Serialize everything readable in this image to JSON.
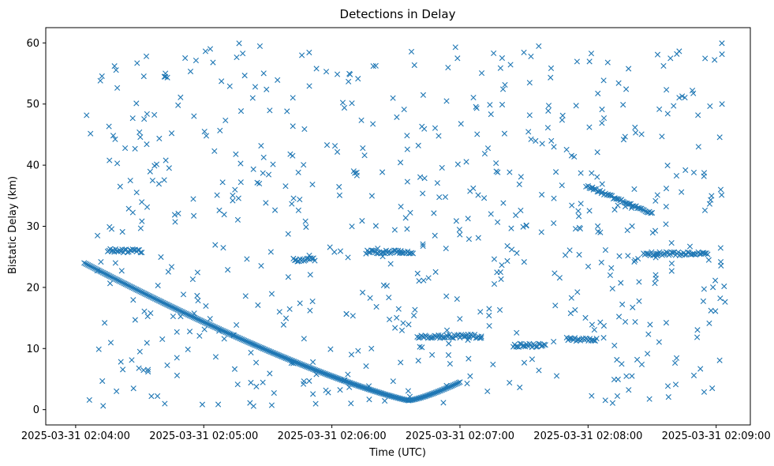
{
  "chart_data": {
    "type": "scatter",
    "title": "Detections in Delay",
    "xlabel": "Time (UTC)",
    "ylabel": "Bistatic Delay (km)",
    "xlim": [
      "2025-03-31 02:03:46",
      "2025-03-31 02:09:16"
    ],
    "ylim": [
      -2.5,
      62.5
    ],
    "x_ticks": [
      "2025-03-31 02:04:00",
      "2025-03-31 02:05:00",
      "2025-03-31 02:06:00",
      "2025-03-31 02:07:00",
      "2025-03-31 02:08:00",
      "2025-03-31 02:09:00"
    ],
    "y_ticks": [
      0,
      10,
      20,
      30,
      40,
      50,
      60
    ],
    "marker": "x",
    "color": "#1f77b4",
    "grid": false,
    "series": [
      {
        "tracks": [
          {
            "start": "2025-03-31 02:04:04",
            "end": "2025-03-31 02:06:36",
            "delay_start": 24.0,
            "delay_min": 1.5,
            "delay_end": 1.5,
            "shape": "descending-to-minimum"
          },
          {
            "start": "2025-03-31 02:06:36",
            "end": "2025-03-31 02:07:00",
            "delay_start": 1.5,
            "delay_end": 4.5,
            "shape": "rising"
          },
          {
            "start": "2025-03-31 02:04:15",
            "end": "2025-03-31 02:04:31",
            "delay": 26.0
          },
          {
            "start": "2025-03-31 02:05:42",
            "end": "2025-03-31 02:05:52",
            "delay": 24.5
          },
          {
            "start": "2025-03-31 02:06:16",
            "end": "2025-03-31 02:06:38",
            "delay": 25.8
          },
          {
            "start": "2025-03-31 02:06:40",
            "end": "2025-03-31 02:07:10",
            "delay": 12.0
          },
          {
            "start": "2025-03-31 02:07:25",
            "end": "2025-03-31 02:07:40",
            "delay": 10.5
          },
          {
            "start": "2025-03-31 02:07:50",
            "end": "2025-03-31 02:08:04",
            "delay": 11.5
          },
          {
            "start": "2025-03-31 02:08:00",
            "end": "2025-03-31 02:08:30",
            "delay_start": 36.5,
            "delay_end": 32.0
          },
          {
            "start": "2025-03-31 02:08:26",
            "end": "2025-03-31 02:08:56",
            "delay": 25.5
          }
        ],
        "clutter": {
          "count": 640,
          "time_range": [
            "2025-03-31 02:04:04",
            "2025-03-31 02:09:05"
          ],
          "delay_range": [
            0.5,
            60.0
          ]
        }
      }
    ]
  }
}
